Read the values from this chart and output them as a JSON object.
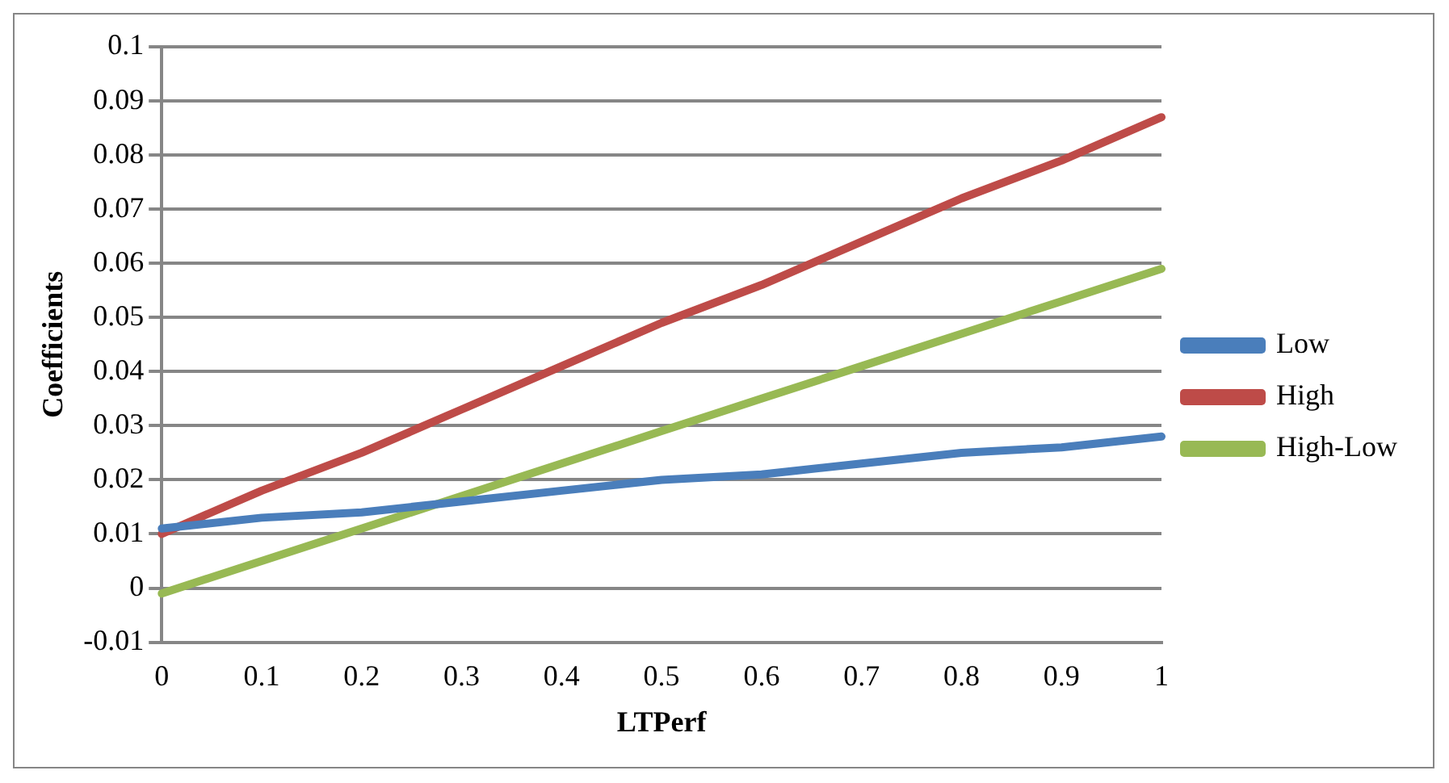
{
  "chart_data": {
    "type": "line",
    "xlabel": "LTPerf",
    "ylabel": "Coefficients",
    "categories": [
      "0",
      "0.1",
      "0.2",
      "0.3",
      "0.4",
      "0.5",
      "0.6",
      "0.7",
      "0.8",
      "0.9",
      "1"
    ],
    "series": [
      {
        "name": "Low",
        "color": "#4a7ebb",
        "values": [
          0.011,
          0.013,
          0.014,
          0.016,
          0.018,
          0.02,
          0.021,
          0.023,
          0.025,
          0.026,
          0.028
        ]
      },
      {
        "name": "High",
        "color": "#be4b48",
        "values": [
          0.01,
          0.018,
          0.025,
          0.033,
          0.041,
          0.049,
          0.056,
          0.064,
          0.072,
          0.079,
          0.087
        ]
      },
      {
        "name": "High-Low",
        "color": "#98b954",
        "values": [
          -0.001,
          0.005,
          0.011,
          0.017,
          0.023,
          0.029,
          0.035,
          0.041,
          0.047,
          0.053,
          0.059
        ]
      }
    ],
    "ylim": [
      -0.01,
      0.1
    ],
    "yticks": [
      -0.01,
      0,
      0.01,
      0.02,
      0.03,
      0.04,
      0.05,
      0.06,
      0.07,
      0.08,
      0.09,
      0.1
    ],
    "grid": "y",
    "legend": "right",
    "marker": "none",
    "line_style": "solid"
  }
}
